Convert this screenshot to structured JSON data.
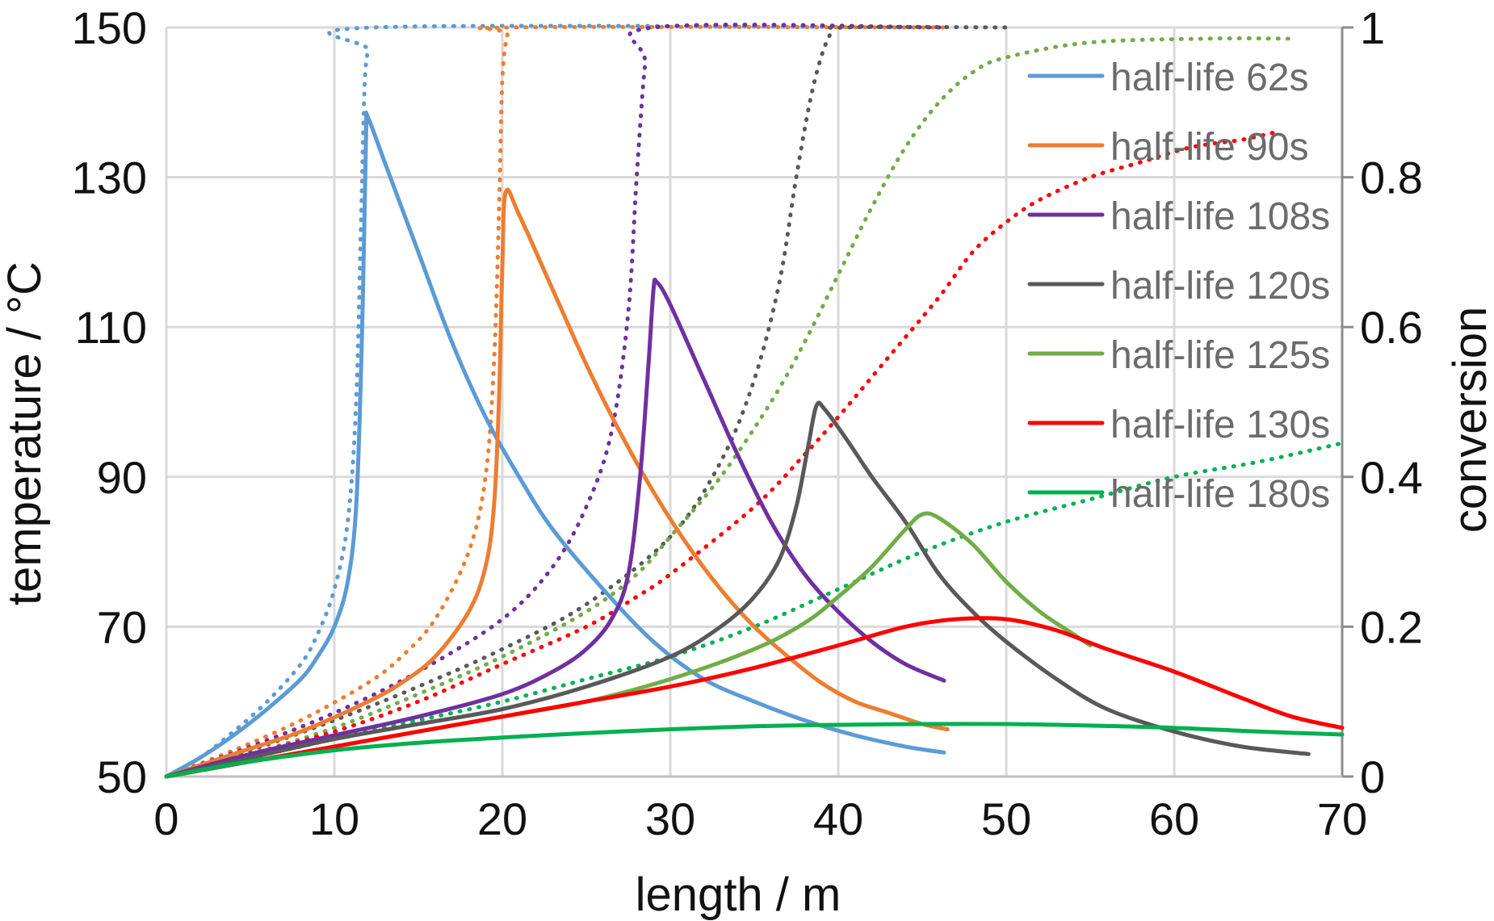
{
  "chart_data": {
    "type": "line",
    "title": "",
    "xlabel": "length / m",
    "ylabel": "temperature / °C",
    "y2label": "conversion",
    "xlim": [
      0,
      70
    ],
    "ylim": [
      50,
      150
    ],
    "y2lim": [
      0,
      1
    ],
    "x_ticks": [
      0,
      10,
      20,
      30,
      40,
      50,
      60,
      70
    ],
    "y_ticks": [
      50,
      70,
      90,
      110,
      130,
      150
    ],
    "y2_ticks": [
      0,
      0.2,
      0.4,
      0.6,
      0.8,
      1
    ],
    "x_tick_labels": [
      "0",
      "10",
      "20",
      "30",
      "40",
      "50",
      "60",
      "70"
    ],
    "y_tick_labels": [
      "50",
      "70",
      "90",
      "110",
      "130",
      "150"
    ],
    "y2_tick_labels": [
      "0",
      "0.2",
      "0.4",
      "0.6",
      "0.8",
      "1"
    ],
    "grid": true,
    "legend_position": "top-right",
    "legend_note": "solid lines: temperature (left axis); dotted lines: conversion (right axis)",
    "series": [
      {
        "name": "half-life 62s",
        "color": "#5b9bd5",
        "temperature": [
          [
            0,
            50
          ],
          [
            2,
            52.5
          ],
          [
            4,
            55.5
          ],
          [
            6,
            59
          ],
          [
            8,
            63
          ],
          [
            9,
            66
          ],
          [
            10,
            70
          ],
          [
            10.8,
            76
          ],
          [
            11.3,
            86
          ],
          [
            11.6,
            105
          ],
          [
            11.8,
            125
          ],
          [
            11.9,
            137
          ],
          [
            12,
            138
          ],
          [
            13,
            132
          ],
          [
            15,
            120
          ],
          [
            17,
            108
          ],
          [
            19,
            98
          ],
          [
            21,
            90
          ],
          [
            23,
            83
          ],
          [
            26,
            75
          ],
          [
            29,
            68
          ],
          [
            32,
            63
          ],
          [
            35,
            60
          ],
          [
            38,
            57.5
          ],
          [
            41,
            55.5
          ],
          [
            44,
            54
          ],
          [
            46.3,
            53.2
          ]
        ],
        "conversion": [
          [
            0,
            0
          ],
          [
            2,
            0.025
          ],
          [
            4,
            0.06
          ],
          [
            6,
            0.1
          ],
          [
            8,
            0.15
          ],
          [
            9,
            0.19
          ],
          [
            10,
            0.25
          ],
          [
            10.8,
            0.34
          ],
          [
            11.3,
            0.5
          ],
          [
            11.6,
            0.75
          ],
          [
            11.8,
            0.92
          ],
          [
            12,
            0.97
          ],
          [
            12.3,
            1
          ],
          [
            46.3,
            1
          ]
        ]
      },
      {
        "name": "half-life 90s",
        "color": "#ed7d31",
        "temperature": [
          [
            0,
            50
          ],
          [
            4,
            53
          ],
          [
            8,
            56
          ],
          [
            12,
            60
          ],
          [
            14,
            62.5
          ],
          [
            16,
            66
          ],
          [
            18,
            72
          ],
          [
            19,
            78
          ],
          [
            19.5,
            86
          ],
          [
            19.8,
            100
          ],
          [
            20,
            118
          ],
          [
            20.2,
            128
          ],
          [
            21,
            125
          ],
          [
            23,
            115
          ],
          [
            25,
            105
          ],
          [
            27,
            96
          ],
          [
            29,
            88
          ],
          [
            31,
            81
          ],
          [
            33,
            75
          ],
          [
            35,
            70
          ],
          [
            37,
            66
          ],
          [
            39,
            62.5
          ],
          [
            41,
            60
          ],
          [
            43,
            58.5
          ],
          [
            45,
            57
          ],
          [
            46.5,
            56.3
          ]
        ],
        "conversion": [
          [
            0,
            0
          ],
          [
            4,
            0.035
          ],
          [
            8,
            0.075
          ],
          [
            12,
            0.125
          ],
          [
            14,
            0.16
          ],
          [
            16,
            0.21
          ],
          [
            18,
            0.3
          ],
          [
            19,
            0.4
          ],
          [
            19.5,
            0.55
          ],
          [
            19.8,
            0.75
          ],
          [
            20,
            0.93
          ],
          [
            20.3,
            0.99
          ],
          [
            20.6,
            1
          ],
          [
            46.5,
            1
          ]
        ]
      },
      {
        "name": "half-life 108s",
        "color": "#7030a0",
        "temperature": [
          [
            0,
            50
          ],
          [
            5,
            53
          ],
          [
            10,
            55.5
          ],
          [
            15,
            58
          ],
          [
            20,
            61
          ],
          [
            23,
            64
          ],
          [
            25,
            67
          ],
          [
            26.5,
            71
          ],
          [
            27.5,
            77
          ],
          [
            28.2,
            90
          ],
          [
            28.7,
            105
          ],
          [
            29,
            115
          ],
          [
            29.2,
            116
          ],
          [
            30,
            113
          ],
          [
            32,
            103
          ],
          [
            34,
            93
          ],
          [
            36,
            84
          ],
          [
            38,
            77
          ],
          [
            40,
            72
          ],
          [
            42,
            68
          ],
          [
            44,
            65
          ],
          [
            46.3,
            62.8
          ]
        ],
        "conversion": [
          [
            0,
            0
          ],
          [
            5,
            0.04
          ],
          [
            10,
            0.085
          ],
          [
            15,
            0.14
          ],
          [
            20,
            0.21
          ],
          [
            23,
            0.28
          ],
          [
            25,
            0.36
          ],
          [
            26.5,
            0.46
          ],
          [
            27.5,
            0.62
          ],
          [
            28,
            0.8
          ],
          [
            28.5,
            0.95
          ],
          [
            29,
            1
          ],
          [
            46.3,
            1
          ]
        ]
      },
      {
        "name": "half-life 120s",
        "color": "#595959",
        "temperature": [
          [
            0,
            50
          ],
          [
            5,
            52.5
          ],
          [
            10,
            55
          ],
          [
            15,
            57
          ],
          [
            20,
            59
          ],
          [
            25,
            62
          ],
          [
            30,
            66
          ],
          [
            33,
            70
          ],
          [
            35,
            74
          ],
          [
            36.5,
            79
          ],
          [
            37.5,
            86
          ],
          [
            38.2,
            94
          ],
          [
            38.7,
            99.5
          ],
          [
            39.2,
            99
          ],
          [
            40.5,
            95
          ],
          [
            42,
            90
          ],
          [
            44,
            84
          ],
          [
            46,
            77
          ],
          [
            48,
            72
          ],
          [
            50,
            68
          ],
          [
            53,
            63
          ],
          [
            56,
            59
          ],
          [
            60,
            56
          ],
          [
            64,
            54
          ],
          [
            68,
            53
          ]
        ],
        "conversion": [
          [
            0,
            0
          ],
          [
            5,
            0.035
          ],
          [
            10,
            0.075
          ],
          [
            15,
            0.12
          ],
          [
            20,
            0.17
          ],
          [
            25,
            0.23
          ],
          [
            30,
            0.32
          ],
          [
            33,
            0.42
          ],
          [
            35,
            0.53
          ],
          [
            36.5,
            0.66
          ],
          [
            37.5,
            0.8
          ],
          [
            38.5,
            0.92
          ],
          [
            39.5,
            0.99
          ],
          [
            40.5,
            1
          ],
          [
            50,
            1
          ]
        ]
      },
      {
        "name": "half-life 125s",
        "color": "#70ad47",
        "temperature": [
          [
            0,
            50
          ],
          [
            5,
            52
          ],
          [
            10,
            54
          ],
          [
            15,
            56
          ],
          [
            20,
            58
          ],
          [
            25,
            60
          ],
          [
            30,
            63
          ],
          [
            35,
            67
          ],
          [
            38,
            70.5
          ],
          [
            40,
            74
          ],
          [
            42,
            78
          ],
          [
            44,
            83
          ],
          [
            45,
            85
          ],
          [
            46,
            84.5
          ],
          [
            48,
            81
          ],
          [
            50,
            76
          ],
          [
            52,
            72
          ],
          [
            54,
            69
          ],
          [
            55,
            67.5
          ]
        ],
        "conversion": [
          [
            0,
            0
          ],
          [
            5,
            0.03
          ],
          [
            10,
            0.065
          ],
          [
            15,
            0.11
          ],
          [
            20,
            0.16
          ],
          [
            25,
            0.22
          ],
          [
            28,
            0.27
          ],
          [
            30,
            0.32
          ],
          [
            33,
            0.4
          ],
          [
            36,
            0.5
          ],
          [
            38,
            0.58
          ],
          [
            40,
            0.67
          ],
          [
            42,
            0.76
          ],
          [
            44,
            0.84
          ],
          [
            46,
            0.9
          ],
          [
            48,
            0.94
          ],
          [
            50,
            0.96
          ],
          [
            55,
            0.98
          ],
          [
            62,
            0.985
          ],
          [
            67,
            0.985
          ]
        ]
      },
      {
        "name": "half-life 130s",
        "color": "#ff0000",
        "temperature": [
          [
            0,
            50
          ],
          [
            5,
            52
          ],
          [
            10,
            54
          ],
          [
            15,
            56
          ],
          [
            20,
            58
          ],
          [
            25,
            60
          ],
          [
            30,
            62
          ],
          [
            35,
            64.5
          ],
          [
            40,
            67.5
          ],
          [
            44,
            70
          ],
          [
            47,
            71
          ],
          [
            50,
            71
          ],
          [
            53,
            69.5
          ],
          [
            56,
            67
          ],
          [
            60,
            64
          ],
          [
            64,
            60.5
          ],
          [
            67,
            58
          ],
          [
            70,
            56.5
          ]
        ],
        "conversion": [
          [
            0,
            0
          ],
          [
            5,
            0.03
          ],
          [
            10,
            0.06
          ],
          [
            15,
            0.1
          ],
          [
            20,
            0.15
          ],
          [
            25,
            0.2
          ],
          [
            28,
            0.24
          ],
          [
            30,
            0.27
          ],
          [
            35,
            0.36
          ],
          [
            38,
            0.43
          ],
          [
            40,
            0.48
          ],
          [
            43,
            0.56
          ],
          [
            46,
            0.64
          ],
          [
            48,
            0.7
          ],
          [
            50,
            0.74
          ],
          [
            52,
            0.77
          ],
          [
            55,
            0.8
          ],
          [
            58,
            0.82
          ],
          [
            61,
            0.84
          ],
          [
            64,
            0.85
          ],
          [
            66,
            0.86
          ]
        ]
      },
      {
        "name": "half-life 180s",
        "color": "#00b050",
        "temperature": [
          [
            0,
            50
          ],
          [
            5,
            52
          ],
          [
            10,
            53.5
          ],
          [
            15,
            54.5
          ],
          [
            20,
            55.2
          ],
          [
            25,
            55.8
          ],
          [
            30,
            56.3
          ],
          [
            35,
            56.7
          ],
          [
            40,
            56.9
          ],
          [
            45,
            57
          ],
          [
            50,
            57
          ],
          [
            55,
            56.8
          ],
          [
            60,
            56.5
          ],
          [
            65,
            56
          ],
          [
            70,
            55.6
          ]
        ],
        "conversion": [
          [
            0,
            0
          ],
          [
            5,
            0.025
          ],
          [
            10,
            0.05
          ],
          [
            15,
            0.075
          ],
          [
            20,
            0.1
          ],
          [
            25,
            0.13
          ],
          [
            30,
            0.16
          ],
          [
            35,
            0.2
          ],
          [
            40,
            0.25
          ],
          [
            45,
            0.3
          ],
          [
            50,
            0.34
          ],
          [
            55,
            0.37
          ],
          [
            60,
            0.4
          ],
          [
            65,
            0.42
          ],
          [
            70,
            0.445
          ]
        ]
      }
    ]
  }
}
